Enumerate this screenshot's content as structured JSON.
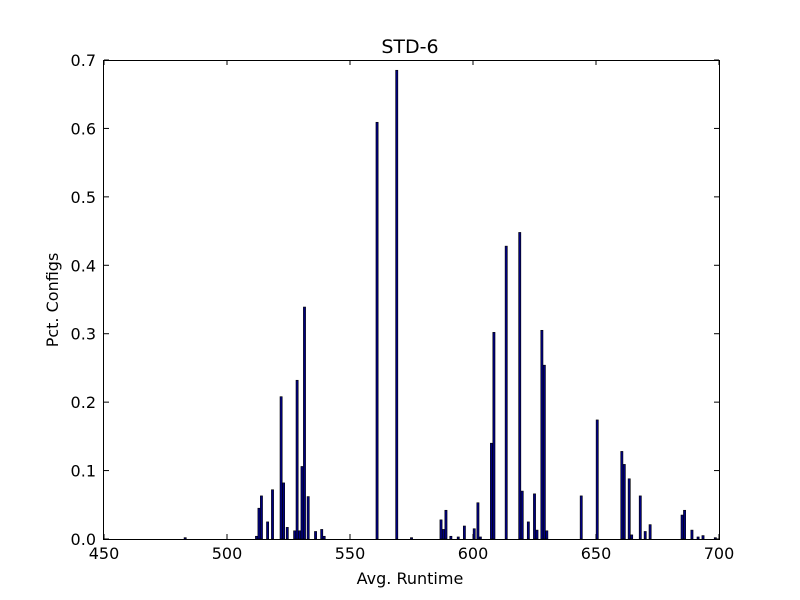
{
  "chart_data": {
    "type": "bar",
    "title": "STD-6",
    "xlabel": "Avg. Runtime",
    "ylabel": "Pct. Configs",
    "xlim": [
      450,
      700
    ],
    "ylim": [
      0.0,
      0.7
    ],
    "xticks": [
      "450",
      "500",
      "550",
      "600",
      "650",
      "700"
    ],
    "yticks": [
      "0.0",
      "0.1",
      "0.2",
      "0.3",
      "0.4",
      "0.5",
      "0.6",
      "0.7"
    ],
    "grid": false,
    "bar_color": "#000080",
    "bar_edge_color": "#000000",
    "x": [
      483,
      512,
      513,
      514,
      516.5,
      518.5,
      522,
      523,
      524.5,
      527.5,
      528.5,
      529.5,
      530.5,
      531.5,
      533,
      536,
      538.5,
      539.5,
      561,
      569,
      575,
      587,
      588,
      589,
      591,
      594,
      596.5,
      600.5,
      602,
      603,
      607.5,
      608.5,
      613.5,
      619,
      620,
      622.5,
      625,
      626,
      628,
      629,
      630,
      644,
      650.5,
      660.5,
      661.5,
      663.5,
      664.5,
      668,
      670,
      672,
      685,
      686,
      689,
      691.5,
      693.5,
      698.5
    ],
    "values": [
      0.002,
      0.004,
      0.045,
      0.063,
      0.025,
      0.072,
      0.208,
      0.082,
      0.017,
      0.012,
      0.232,
      0.012,
      0.106,
      0.339,
      0.062,
      0.011,
      0.014,
      0.004,
      0.609,
      0.685,
      0.002,
      0.028,
      0.014,
      0.042,
      0.004,
      0.003,
      0.019,
      0.015,
      0.053,
      0.003,
      0.14,
      0.302,
      0.428,
      0.448,
      0.07,
      0.025,
      0.066,
      0.013,
      0.305,
      0.254,
      0.012,
      0.063,
      0.174,
      0.128,
      0.109,
      0.088,
      0.006,
      0.063,
      0.011,
      0.021,
      0.035,
      0.042,
      0.013,
      0.003,
      0.005,
      0.002
    ]
  }
}
